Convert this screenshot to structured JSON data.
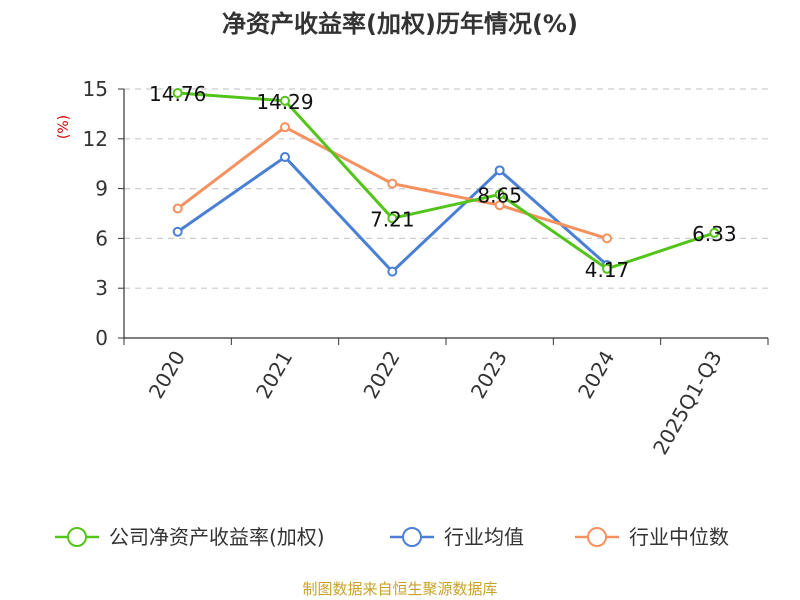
{
  "chart_data": {
    "type": "line",
    "title": "净资产收益率(加权)历年情况(%)",
    "ylabel": "(%)",
    "xlabel": "",
    "categories": [
      "2020",
      "2021",
      "2022",
      "2023",
      "2024",
      "2025Q1-Q3"
    ],
    "ylim": [
      0,
      15
    ],
    "yticks": [
      0,
      3,
      6,
      9,
      12,
      15
    ],
    "grid": true,
    "legend_position": "bottom",
    "series": [
      {
        "name": "公司净资产收益率(加权)",
        "color": "#52c41a",
        "values": [
          14.76,
          14.29,
          7.21,
          8.65,
          4.17,
          6.33
        ],
        "labels": [
          "14.76",
          "14.29",
          "7.21",
          "8.65",
          "4.17",
          "6.33"
        ]
      },
      {
        "name": "行业均值",
        "color": "#4a7fd6",
        "values": [
          6.4,
          10.9,
          4.0,
          10.1,
          4.4,
          null
        ]
      },
      {
        "name": "行业中位数",
        "color": "#f5915e",
        "values": [
          7.8,
          12.7,
          9.3,
          8.0,
          6.0,
          null
        ]
      }
    ]
  },
  "source": "制图数据来自恒生聚源数据库"
}
